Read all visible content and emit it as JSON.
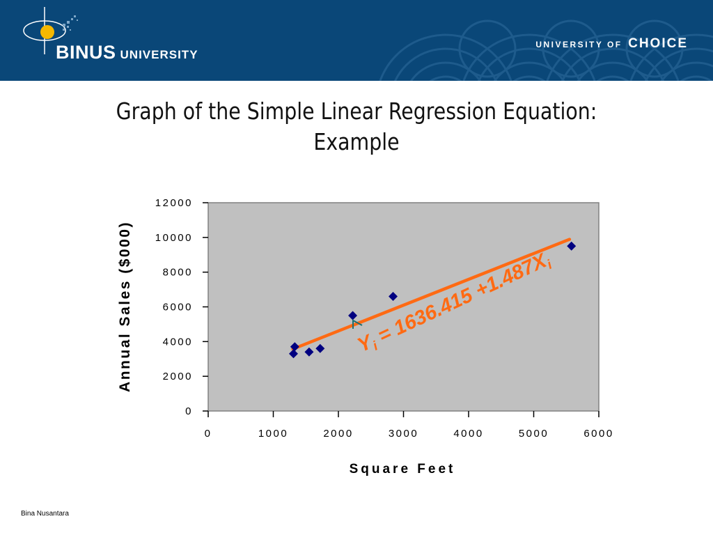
{
  "header": {
    "logo_main": "BINUS",
    "logo_secondary": "UNIVERSITY",
    "tagline_prefix": "UNIVERSITY OF",
    "tagline_main": "CHOICE",
    "colors": {
      "background": "#0a4778",
      "logo_sphere": "#f5b800"
    }
  },
  "slide": {
    "title_line1": "Graph of the Simple Linear Regression Equation:",
    "title_line2": "Example"
  },
  "chart_data": {
    "type": "scatter",
    "xlabel": "Square Feet",
    "ylabel": "Annual Sales ($000)",
    "xlim": [
      0,
      6000
    ],
    "ylim": [
      0,
      12000
    ],
    "xticks": [
      0,
      1000,
      2000,
      3000,
      4000,
      5000,
      6000
    ],
    "yticks": [
      0,
      2000,
      4000,
      6000,
      8000,
      10000,
      12000
    ],
    "xtick_labels": [
      "0",
      "1000",
      "2000",
      "3000",
      "4000",
      "5000",
      "6000"
    ],
    "ytick_labels": [
      "0",
      "2000",
      "4000",
      "6000",
      "8000",
      "10000",
      "12000"
    ],
    "series": [
      {
        "x": [
          1310,
          1330,
          1550,
          1720,
          2220,
          2840,
          5580
        ],
        "y": [
          3300,
          3700,
          3400,
          3600,
          5500,
          6600,
          9500
        ],
        "color": "#000080",
        "marker": "diamond"
      }
    ],
    "regression_line": {
      "intercept": 1636.415,
      "slope": 1.487,
      "x_range": [
        1300,
        5550
      ],
      "color": "#ff6a13"
    },
    "equation_label": {
      "y_symbol": "Y",
      "subscript": "i",
      "text": " = 1636.415 +1.487X",
      "subscript2": "i",
      "color": "#ff6a13"
    },
    "plot_background": "#c0c0c0",
    "grid": false,
    "legend": "none"
  },
  "footer": {
    "text": "Bina Nusantara"
  }
}
